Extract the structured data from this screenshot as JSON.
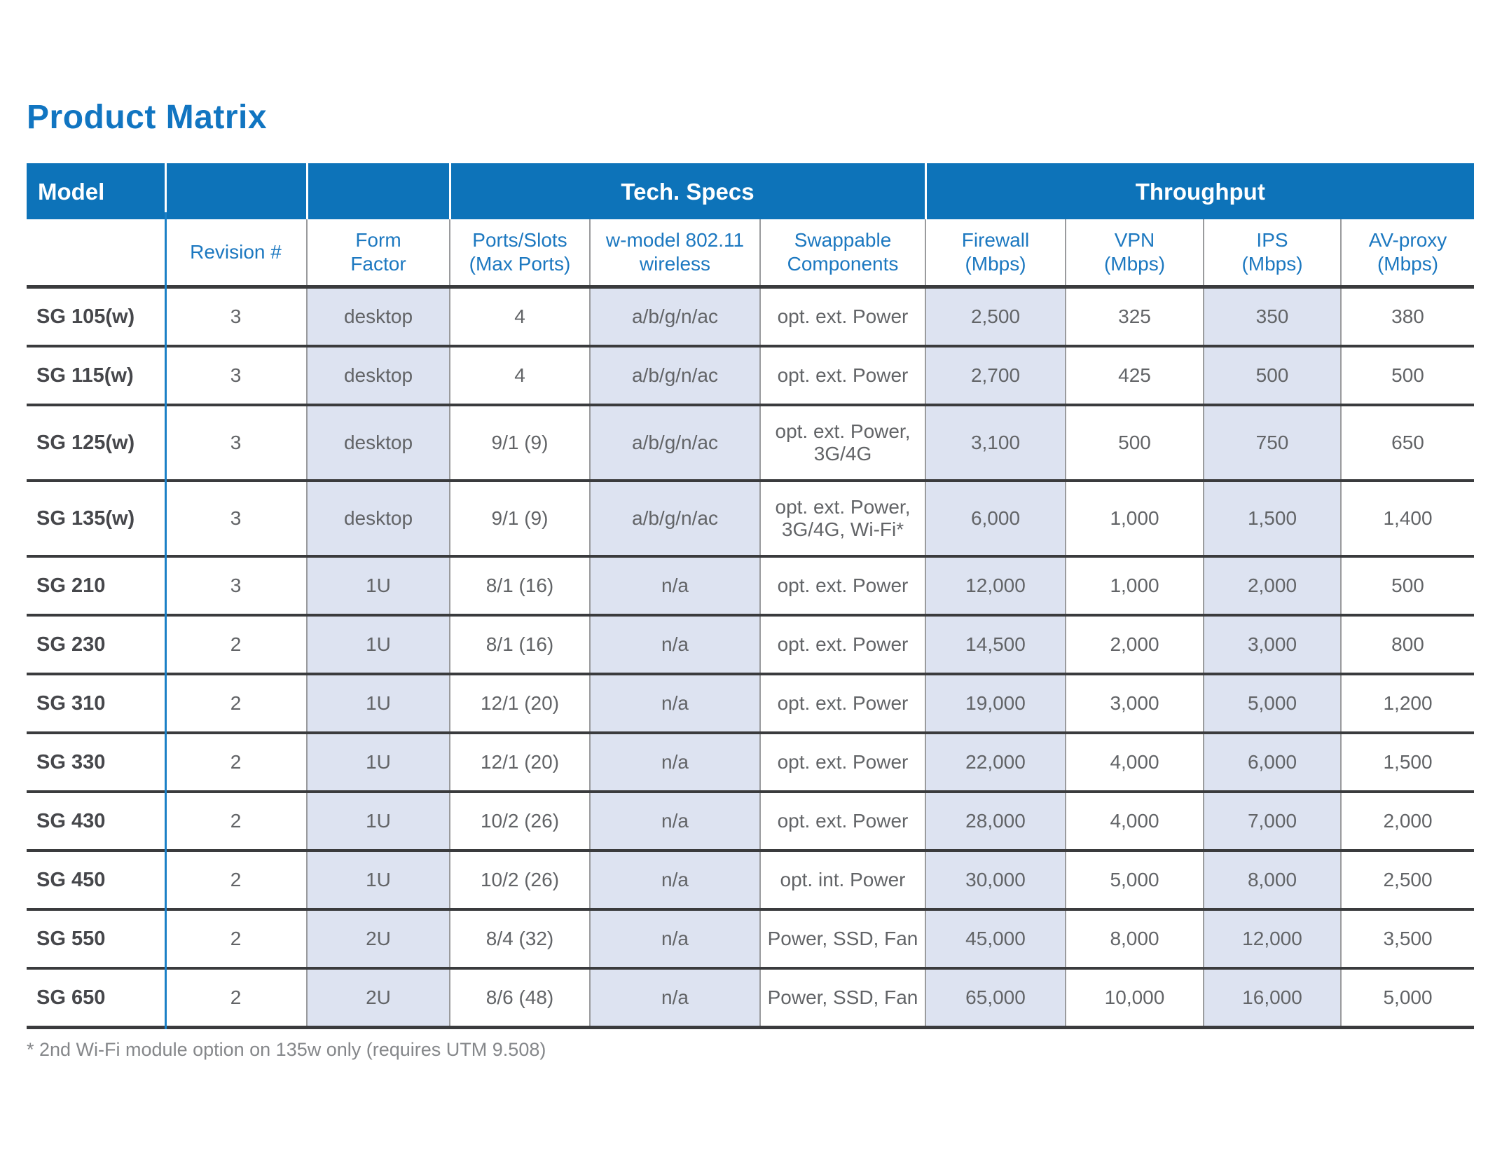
{
  "title": "Product Matrix",
  "footnote": "* 2nd Wi-Fi module option on 135w only (requires UTM 9.508)",
  "colors": {
    "band_blue": "#0d73b9",
    "header_text_blue": "#1c78c0",
    "title_blue": "#1175c1",
    "shaded_column": "#dde3f1",
    "rule_dark": "#3a3b3d",
    "rule_gray": "#9a9b9d",
    "model_divider_blue": "#1b80c6",
    "cell_text": "#626467",
    "model_text": "#46474b"
  },
  "table": {
    "groups": [
      {
        "label": "Model",
        "span": 1
      },
      {
        "label": "",
        "span": 1
      },
      {
        "label": "",
        "span": 1
      },
      {
        "label": "Tech. Specs",
        "span": 3
      },
      {
        "label": "Throughput",
        "span": 4
      }
    ],
    "columns": [
      "",
      "Revision #",
      "Form\nFactor",
      "Ports/Slots\n(Max Ports)",
      "w-model 802.11\nwireless",
      "Swappable\nComponents",
      "Firewall\n(Mbps)",
      "VPN\n(Mbps)",
      "IPS\n(Mbps)",
      "AV-proxy\n(Mbps)"
    ],
    "shaded_columns": [
      2,
      4,
      6,
      8
    ],
    "rows": [
      {
        "model": "SG 105(w)",
        "values": [
          "3",
          "desktop",
          "4",
          "a/b/g/n/ac",
          "opt. ext. Power",
          "2,500",
          "325",
          "350",
          "380"
        ]
      },
      {
        "model": "SG 115(w)",
        "values": [
          "3",
          "desktop",
          "4",
          "a/b/g/n/ac",
          "opt. ext. Power",
          "2,700",
          "425",
          "500",
          "500"
        ]
      },
      {
        "model": "SG 125(w)",
        "values": [
          "3",
          "desktop",
          "9/1 (9)",
          "a/b/g/n/ac",
          "opt. ext. Power,\n3G/4G",
          "3,100",
          "500",
          "750",
          "650"
        ]
      },
      {
        "model": "SG 135(w)",
        "values": [
          "3",
          "desktop",
          "9/1 (9)",
          "a/b/g/n/ac",
          "opt. ext. Power,\n3G/4G, Wi-Fi*",
          "6,000",
          "1,000",
          "1,500",
          "1,400"
        ]
      },
      {
        "model": "SG 210",
        "values": [
          "3",
          "1U",
          "8/1 (16)",
          "n/a",
          "opt. ext. Power",
          "12,000",
          "1,000",
          "2,000",
          "500"
        ]
      },
      {
        "model": "SG 230",
        "values": [
          "2",
          "1U",
          "8/1 (16)",
          "n/a",
          "opt. ext. Power",
          "14,500",
          "2,000",
          "3,000",
          "800"
        ]
      },
      {
        "model": "SG 310",
        "values": [
          "2",
          "1U",
          "12/1 (20)",
          "n/a",
          "opt. ext. Power",
          "19,000",
          "3,000",
          "5,000",
          "1,200"
        ]
      },
      {
        "model": "SG 330",
        "values": [
          "2",
          "1U",
          "12/1 (20)",
          "n/a",
          "opt. ext. Power",
          "22,000",
          "4,000",
          "6,000",
          "1,500"
        ]
      },
      {
        "model": "SG 430",
        "values": [
          "2",
          "1U",
          "10/2 (26)",
          "n/a",
          "opt. ext. Power",
          "28,000",
          "4,000",
          "7,000",
          "2,000"
        ]
      },
      {
        "model": "SG 450",
        "values": [
          "2",
          "1U",
          "10/2 (26)",
          "n/a",
          "opt. int. Power",
          "30,000",
          "5,000",
          "8,000",
          "2,500"
        ]
      },
      {
        "model": "SG 550",
        "values": [
          "2",
          "2U",
          "8/4 (32)",
          "n/a",
          "Power, SSD, Fan",
          "45,000",
          "8,000",
          "12,000",
          "3,500"
        ]
      },
      {
        "model": "SG 650",
        "values": [
          "2",
          "2U",
          "8/6 (48)",
          "n/a",
          "Power, SSD, Fan",
          "65,000",
          "10,000",
          "16,000",
          "5,000"
        ]
      }
    ]
  }
}
